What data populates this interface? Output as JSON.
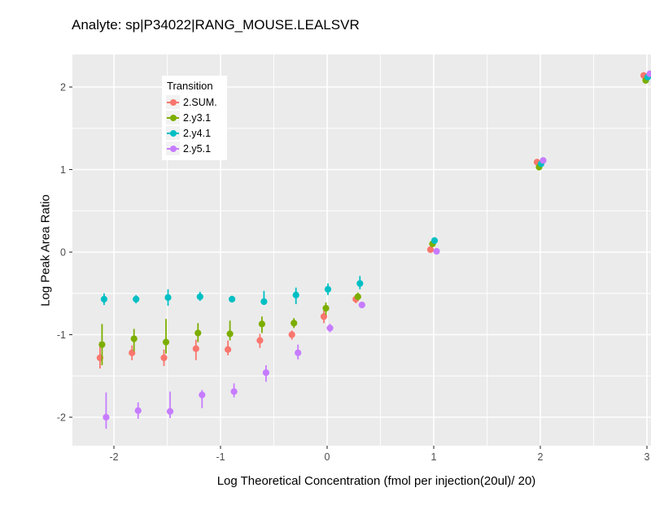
{
  "chart_data": {
    "type": "scatter",
    "subtype": "pointrange",
    "title": "Analyte: sp|P34022|RANG_MOUSE.LEALSVR",
    "xlabel": "Log Theoretical Concentration (fmol per injection(20ul)/ 20)",
    "ylabel": "Log Peak Area Ratio",
    "legend_title": "Transition",
    "legend_position": "inside-top-left",
    "grid": "on",
    "panel_bg": "#EBEBEB",
    "grid_color": "#FFFFFF",
    "tick_label_color": "#4D4D4D",
    "x_ticks": [
      -2,
      -1,
      0,
      1,
      2,
      3
    ],
    "y_ticks": [
      -2,
      -1,
      0,
      1,
      2
    ],
    "x_minor": [
      -1.5,
      -0.5,
      0.5,
      1.5,
      2.5
    ],
    "y_minor": [
      -1.5,
      -0.5,
      0.5,
      1.5
    ],
    "xlim": [
      -2.39,
      3.31
    ],
    "ylim": [
      -2.35,
      2.39
    ],
    "x": [
      -2.1,
      -1.8,
      -1.5,
      -1.2,
      -0.9,
      -0.6,
      -0.3,
      0,
      0.3,
      1,
      2,
      3
    ],
    "series": [
      {
        "name": "2.SUM.",
        "color": "#F8766D",
        "y": [
          -1.28,
          -1.22,
          -1.28,
          -1.17,
          -1.18,
          -1.07,
          -1.0,
          -0.78,
          -0.57,
          0.03,
          1.09,
          2.14
        ],
        "lo": [
          -1.41,
          -1.31,
          -1.38,
          -1.31,
          -1.25,
          -1.16,
          -1.06,
          -0.86,
          -0.62,
          0.0,
          1.07,
          2.13
        ],
        "hi": [
          -1.09,
          -1.13,
          -1.18,
          -1.06,
          -1.07,
          -0.99,
          -0.95,
          -0.71,
          -0.52,
          0.06,
          1.11,
          2.15
        ]
      },
      {
        "name": "2.y3.1",
        "color": "#7CAE00",
        "y": [
          -1.12,
          -1.05,
          -1.09,
          -0.98,
          -0.99,
          -0.87,
          -0.86,
          -0.68,
          -0.54,
          0.1,
          1.03,
          2.08
        ],
        "lo": [
          -1.37,
          -1.2,
          -1.23,
          -1.09,
          -1.07,
          -0.98,
          -0.92,
          -0.76,
          -0.58,
          0.07,
          1.0,
          2.07
        ],
        "hi": [
          -0.87,
          -0.93,
          -0.81,
          -0.86,
          -0.83,
          -0.78,
          -0.8,
          -0.61,
          -0.49,
          0.13,
          1.06,
          2.09
        ]
      },
      {
        "name": "2.y4.1",
        "color": "#00BFC4",
        "y": [
          -0.57,
          -0.57,
          -0.55,
          -0.54,
          -0.57,
          -0.6,
          -0.52,
          -0.45,
          -0.38,
          0.14,
          1.07,
          2.12
        ],
        "lo": [
          -0.64,
          -0.62,
          -0.65,
          -0.59,
          -0.61,
          -0.64,
          -0.63,
          -0.52,
          -0.45,
          0.1,
          1.05,
          2.1
        ],
        "hi": [
          -0.5,
          -0.52,
          -0.45,
          -0.48,
          -0.53,
          -0.47,
          -0.43,
          -0.38,
          -0.29,
          0.18,
          1.09,
          2.14
        ]
      },
      {
        "name": "2.y5.1",
        "color": "#C77CFF",
        "y": [
          -2.0,
          -1.92,
          -1.93,
          -1.73,
          -1.69,
          -1.46,
          -1.22,
          -0.92,
          -0.64,
          0.01,
          1.11,
          2.16
        ],
        "lo": [
          -2.14,
          -2.02,
          -2.01,
          -1.89,
          -1.76,
          -1.57,
          -1.3,
          -0.97,
          -0.68,
          -0.02,
          1.09,
          2.15
        ],
        "hi": [
          -1.7,
          -1.82,
          -1.69,
          -1.67,
          -1.59,
          -1.37,
          -1.12,
          -0.87,
          -0.6,
          0.04,
          1.13,
          2.17
        ]
      }
    ]
  }
}
